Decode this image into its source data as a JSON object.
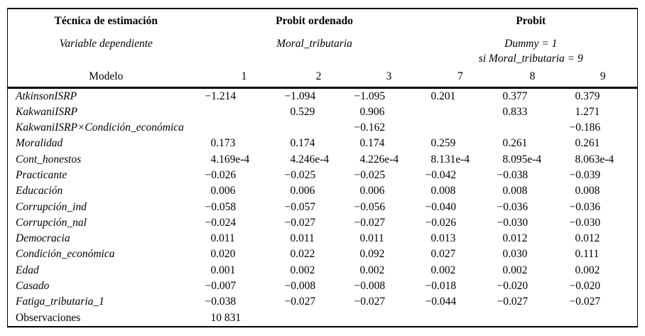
{
  "table": {
    "header": {
      "technique_label": "Técnica de estimación",
      "group_ordered_probit": "Probit ordenado",
      "group_probit": "Probit",
      "dep_var_label": "Variable dependiente",
      "dep_ordered": "Moral_tributaria",
      "dep_probit_line1": "Dummy = 1",
      "dep_probit_line2": "si Moral_tributaria = 9",
      "model_label": "Modelo",
      "model_numbers": [
        "1",
        "2",
        "3",
        "7",
        "8",
        "9"
      ]
    },
    "rows": [
      {
        "label": "AtkinsonISRP",
        "italic": true,
        "values": [
          "−1.214",
          "−1.094",
          "−1.095",
          "0.201",
          "0.377",
          "0.379"
        ]
      },
      {
        "label": "KakwaniISRP",
        "italic": true,
        "values": [
          "",
          "0.529",
          "0.906",
          "",
          "0.833",
          "1.271"
        ]
      },
      {
        "label": "KakwaniISRP×Condición_económica",
        "italic": true,
        "values": [
          "",
          "",
          "−0.162",
          "",
          "",
          "−0.186"
        ]
      },
      {
        "label": "Moralidad",
        "italic": true,
        "values": [
          "0.173",
          "0.174",
          "0.174",
          "0.259",
          "0.261",
          "0.261"
        ]
      },
      {
        "label": "Cont_honestos",
        "italic": true,
        "values": [
          "4.169e-4",
          "4.246e-4",
          "4.226e-4",
          "8.131e-4",
          "8.095e-4",
          "8.063e-4"
        ]
      },
      {
        "label": "Practicante",
        "italic": true,
        "values": [
          "−0.026",
          "−0.025",
          "−0.025",
          "−0.042",
          "−0.038",
          "−0.039"
        ]
      },
      {
        "label": "Educación",
        "italic": true,
        "values": [
          "0.006",
          "0.006",
          "0.006",
          "0.008",
          "0.008",
          "0.008"
        ]
      },
      {
        "label": "Corrupción_ind",
        "italic": true,
        "values": [
          "−0.058",
          "−0.057",
          "−0.056",
          "−0.040",
          "−0.036",
          "−0.036"
        ]
      },
      {
        "label": "Corrupción_nal",
        "italic": true,
        "values": [
          "−0.024",
          "−0.027",
          "−0.027",
          "−0.026",
          "−0.030",
          "−0.030"
        ]
      },
      {
        "label": "Democracia",
        "italic": true,
        "values": [
          "0.011",
          "0.011",
          "0.011",
          "0.013",
          "0.012",
          "0.012"
        ]
      },
      {
        "label": "Condición_económica",
        "italic": true,
        "values": [
          "0.020",
          "0.022",
          "0.092",
          "0.027",
          "0.030",
          "0.111"
        ]
      },
      {
        "label": "Edad",
        "italic": true,
        "values": [
          "0.001",
          "0.002",
          "0.002",
          "0.002",
          "0.002",
          "0.002"
        ]
      },
      {
        "label": "Casado",
        "italic": true,
        "values": [
          "−0.007",
          "−0.008",
          "−0.008",
          "−0.018",
          "−0.020",
          "−0.020"
        ]
      },
      {
        "label": "Fatiga_tributaria_1",
        "italic": true,
        "values": [
          "−0.038",
          "−0.027",
          "−0.027",
          "−0.044",
          "−0.027",
          "−0.027"
        ]
      },
      {
        "label": "Observaciones",
        "italic": false,
        "values": [
          "10 831",
          "",
          "",
          "",
          "",
          ""
        ]
      }
    ]
  }
}
